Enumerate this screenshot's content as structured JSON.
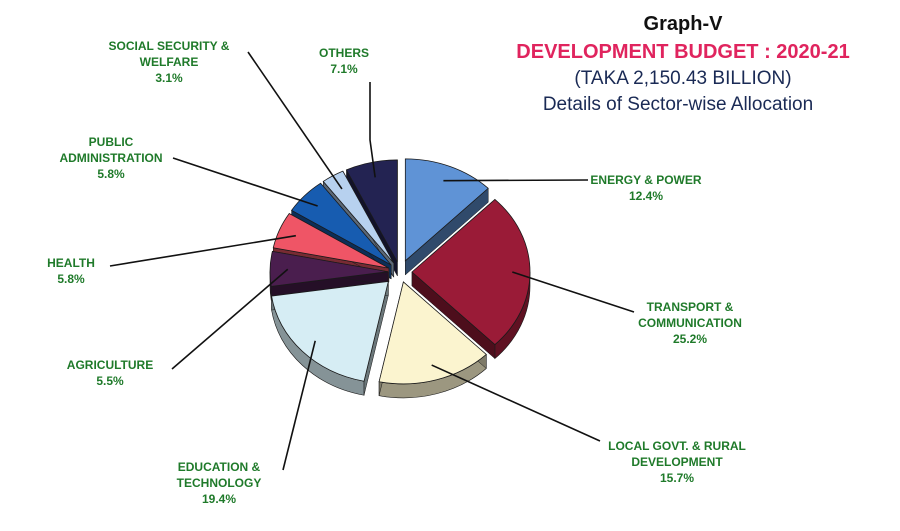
{
  "header": {
    "graph_label": "Graph-V",
    "title": "DEVELOPMENT BUDGET : 2020-21",
    "subtitle": "(TAKA  2,150.43 BILLION)",
    "caption": "Details of Sector-wise Allocation"
  },
  "chart_data": {
    "type": "pie",
    "style": "3d-exploded",
    "title": "DEVELOPMENT BUDGET : 2020-21",
    "unit": "%",
    "slices": [
      {
        "name": "ENERGY & POWER",
        "lines": [
          "ENERGY & POWER"
        ],
        "value": 12.4,
        "value_label": "12.4%",
        "color": "#5f93d6"
      },
      {
        "name": "TRANSPORT & COMMUNICATION",
        "lines": [
          "TRANSPORT &",
          "COMMUNICATION"
        ],
        "value": 25.2,
        "value_label": "25.2%",
        "color": "#9a1b37"
      },
      {
        "name": "LOCAL GOVT. & RURAL DEVELOPMENT",
        "lines": [
          "LOCAL GOVT. & RURAL",
          "DEVELOPMENT"
        ],
        "value": 15.7,
        "value_label": "15.7%",
        "color": "#fbf4cf"
      },
      {
        "name": "EDUCATION & TECHNOLOGY",
        "lines": [
          "EDUCATION &",
          "TECHNOLOGY"
        ],
        "value": 19.4,
        "value_label": "19.4%",
        "color": "#d6edf4"
      },
      {
        "name": "AGRICULTURE",
        "lines": [
          "AGRICULTURE"
        ],
        "value": 5.5,
        "value_label": "5.5%",
        "color": "#4a1e4e"
      },
      {
        "name": "HEALTH",
        "lines": [
          "HEALTH"
        ],
        "value": 5.8,
        "value_label": "5.8%",
        "color": "#ef5566"
      },
      {
        "name": "PUBLIC ADMINISTRATION",
        "lines": [
          "PUBLIC",
          "ADMINISTRATION"
        ],
        "value": 5.8,
        "value_label": "5.8%",
        "color": "#175cb0"
      },
      {
        "name": "SOCIAL SECURITY & WELFARE",
        "lines": [
          "SOCIAL SECURITY &",
          "WELFARE"
        ],
        "value": 3.1,
        "value_label": "3.1%",
        "color": "#b7d1ef"
      },
      {
        "name": "OTHERS",
        "lines": [
          "OTHERS"
        ],
        "value": 7.1,
        "value_label": "7.1%",
        "color": "#232352"
      }
    ]
  }
}
